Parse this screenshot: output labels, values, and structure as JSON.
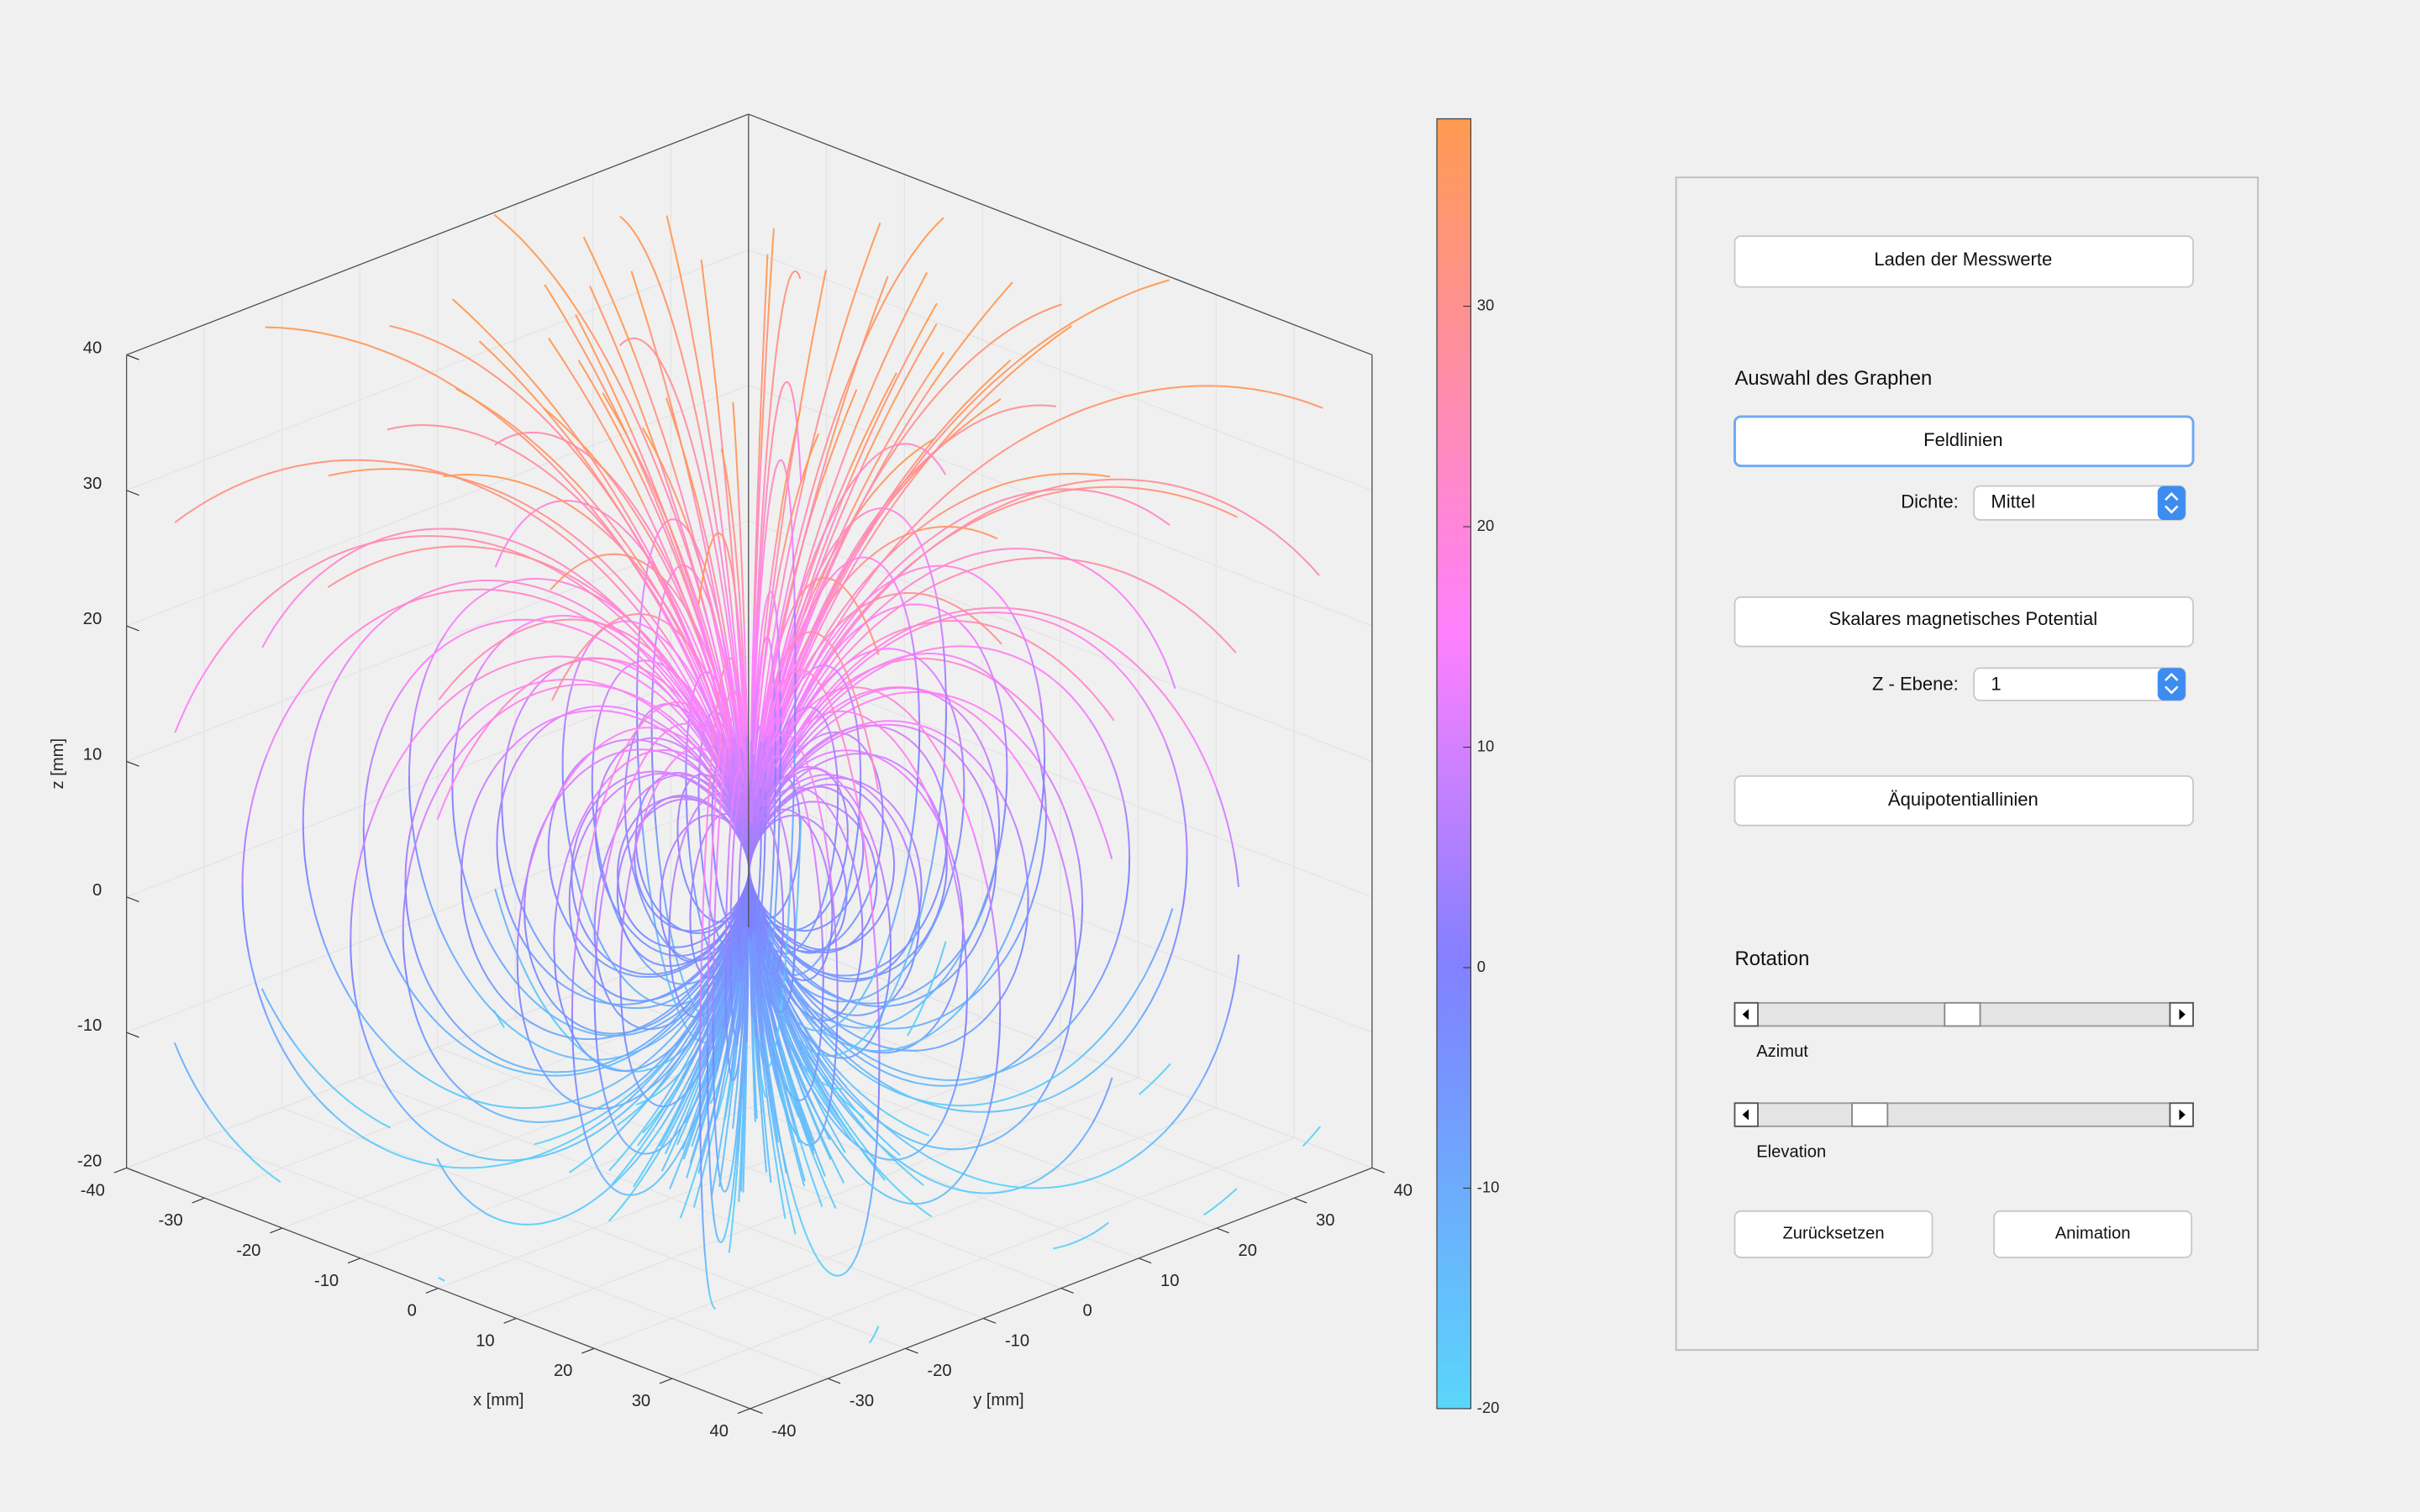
{
  "chart_data": {
    "type": "streamlines3d",
    "xlabel": "x [mm]",
    "ylabel": "y [mm]",
    "zlabel": "z [mm]",
    "xlim": [
      -40,
      40
    ],
    "ylim": [
      -40,
      40
    ],
    "zlim": [
      -20,
      40
    ],
    "xticks": [
      -40,
      -30,
      -20,
      -10,
      0,
      10,
      20,
      30,
      40
    ],
    "yticks": [
      -40,
      -30,
      -20,
      -10,
      0,
      10,
      20,
      30,
      40
    ],
    "zticks": [
      -20,
      -10,
      0,
      10,
      20,
      30,
      40
    ],
    "grid": true,
    "clim": [
      -20,
      38.5
    ],
    "cticks": [
      -20,
      -10,
      0,
      10,
      20,
      30
    ]
  },
  "panel": {
    "load_button": "Laden der Messwerte",
    "graph_section": "Auswahl des Graphen",
    "fieldlines_button": "Feldlinien",
    "density_label": "Dichte:",
    "density_value": "Mittel",
    "potential_button": "Skalares magnetisches Potential",
    "zplane_label": "Z - Ebene:",
    "zplane_value": "1",
    "equipotential_button": "Äquipotentiallinien",
    "rotation_section": "Rotation",
    "azimuth_label": "Azimut",
    "elevation_label": "Elevation",
    "reset_button": "Zurücksetzen",
    "animation_button": "Animation"
  }
}
